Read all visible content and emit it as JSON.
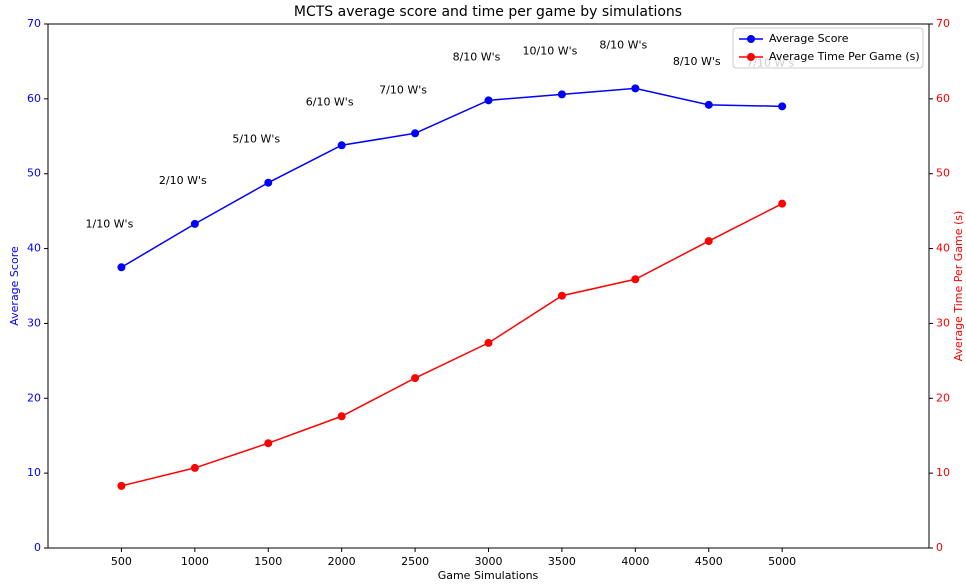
{
  "chart_data": {
    "type": "line",
    "title": "MCTS average score and time per game by simulations",
    "x_label": "Game Simulations",
    "y_label": "Average Score",
    "y2_label": "Average Time Per Game (s)",
    "x": [
      500,
      1000,
      1500,
      2000,
      2500,
      3000,
      3500,
      4000,
      4500,
      5000
    ],
    "xlim": [
      0,
      6000
    ],
    "xticks": [
      500,
      1000,
      1500,
      2000,
      2500,
      3000,
      3500,
      4000,
      4500,
      5000
    ],
    "ylim": [
      0,
      70
    ],
    "yticks": [
      0,
      10,
      20,
      30,
      40,
      50,
      60,
      70
    ],
    "y2lim": [
      0,
      70
    ],
    "y2ticks": [
      0,
      10,
      20,
      30,
      40,
      50,
      60,
      70
    ],
    "legend": "upper right",
    "series": [
      {
        "name": "Average Score",
        "color": "#0000ff",
        "axis": "y",
        "values": [
          37.5,
          43.3,
          48.8,
          53.8,
          55.4,
          59.8,
          60.6,
          61.4,
          59.2,
          59.0
        ]
      },
      {
        "name": "Average Time Per Game (s)",
        "color": "#ff0000",
        "axis": "y2",
        "values": [
          8.3,
          10.7,
          14.0,
          17.6,
          22.7,
          27.4,
          33.7,
          35.9,
          41.0,
          46.0
        ]
      }
    ],
    "annotations": [
      "1/10 W's",
      "2/10 W's",
      "5/10 W's",
      "6/10 W's",
      "7/10 W's",
      "8/10 W's",
      "10/10 W's",
      "8/10 W's",
      "8/10 W's",
      "7/10 W's"
    ]
  }
}
